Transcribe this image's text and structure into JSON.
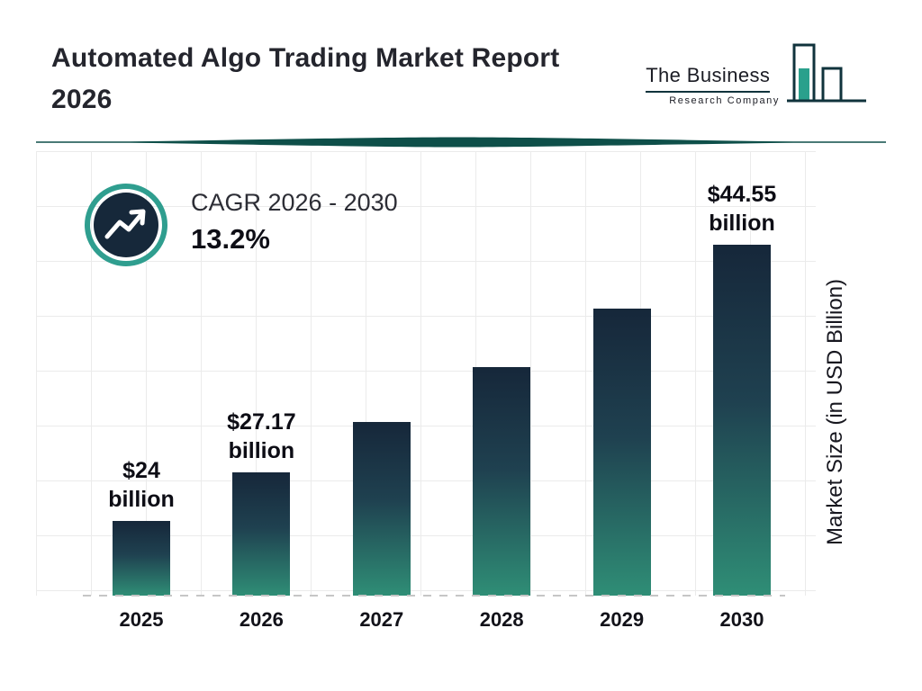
{
  "header": {
    "title_line1": "Automated Algo Trading Market Report",
    "title_line2": "2026"
  },
  "logo": {
    "line1": "The Business",
    "line2": "Research Company"
  },
  "cagr": {
    "label": "CAGR 2026 - 2030",
    "value": "13.2%"
  },
  "chart_data": {
    "type": "bar",
    "title": "Automated Algo Trading Market Report 2026",
    "categories": [
      "2025",
      "2026",
      "2027",
      "2028",
      "2029",
      "2030"
    ],
    "values": [
      24,
      27.17,
      30.76,
      34.82,
      39.41,
      44.55
    ],
    "bar_labels": [
      "$24 billion",
      "$27.17 billion",
      "",
      "",
      "",
      "$44.55 billion"
    ],
    "labeled_points": {
      "2025": "$24 billion",
      "2026": "$27.17 billion",
      "2030": "$44.55 billion"
    },
    "annotation": "CAGR 2026 - 2030: 13.2%",
    "xlabel": "",
    "ylabel": "Market Size (in USD Billion)",
    "ylim": [
      20,
      44.55
    ],
    "grid": true,
    "legend": false
  },
  "colors": {
    "bar_top": "#16273a",
    "bar_bottom": "#2f8e76",
    "ring_teal": "#2f9e8f",
    "icon_navy": "#16283a",
    "divider": "#0e4f49",
    "grid": "#ebebeb"
  }
}
